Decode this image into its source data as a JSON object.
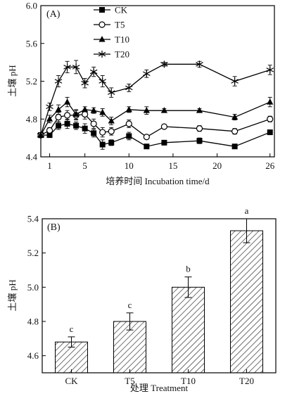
{
  "chart_data": [
    {
      "type": "line",
      "panel_label": "(A)",
      "xlabel": "培养时间 Incubation time/d",
      "ylabel": "土壤 pH",
      "xlim": [
        0,
        26.5
      ],
      "ylim": [
        4.4,
        6.0
      ],
      "xticks": [
        1,
        5,
        10,
        15,
        20,
        26
      ],
      "yticks": [
        4.4,
        4.8,
        5.2,
        5.6,
        6.0
      ],
      "ytick_labels": [
        "4.4",
        "4.8",
        "5.2",
        "5.6",
        "6.0"
      ],
      "grid": false,
      "legend_position": "top-left",
      "x": [
        0,
        1,
        2,
        3,
        4,
        5,
        6,
        7,
        8,
        10,
        12,
        14,
        18,
        22,
        26
      ],
      "series": [
        {
          "name": "CK",
          "marker": "filled-square",
          "values": [
            4.63,
            4.63,
            4.73,
            4.75,
            4.73,
            4.7,
            4.65,
            4.53,
            4.55,
            4.62,
            4.51,
            4.55,
            4.57,
            4.51,
            4.66
          ],
          "errors": [
            0.02,
            0.02,
            0.04,
            0.05,
            0.04,
            0.05,
            0.04,
            0.05,
            0.03,
            0.04,
            0.02,
            0.02,
            0.03,
            0.02,
            0.02
          ]
        },
        {
          "name": "T5",
          "marker": "open-circle",
          "values": [
            4.63,
            4.68,
            4.82,
            4.84,
            4.84,
            4.85,
            4.75,
            4.66,
            4.67,
            4.75,
            4.61,
            4.72,
            4.7,
            4.67,
            4.8
          ],
          "errors": [
            0.02,
            0.03,
            0.05,
            0.05,
            0.05,
            0.05,
            0.05,
            0.05,
            0.04,
            0.04,
            0.02,
            0.02,
            0.03,
            0.03,
            0.03
          ]
        },
        {
          "name": "T10",
          "marker": "filled-triangle",
          "values": [
            4.63,
            4.8,
            4.9,
            4.98,
            4.85,
            4.9,
            4.89,
            4.87,
            4.78,
            4.9,
            4.89,
            4.89,
            4.89,
            4.82,
            4.98
          ],
          "errors": [
            0.02,
            0.04,
            0.05,
            0.05,
            0.05,
            0.03,
            0.03,
            0.04,
            0.04,
            0.03,
            0.04,
            0.02,
            0.02,
            0.03,
            0.05
          ]
        },
        {
          "name": "T20",
          "marker": "asterisk",
          "values": [
            4.63,
            4.93,
            5.2,
            5.35,
            5.35,
            5.18,
            5.3,
            5.2,
            5.08,
            5.13,
            5.28,
            5.38,
            5.38,
            5.2,
            5.32
          ],
          "errors": [
            0.02,
            0.04,
            0.06,
            0.06,
            0.07,
            0.05,
            0.05,
            0.06,
            0.05,
            0.04,
            0.04,
            0.02,
            0.03,
            0.05,
            0.05
          ]
        }
      ]
    },
    {
      "type": "bar",
      "panel_label": "(B)",
      "xlabel": "处理 Treatment",
      "ylabel": "土壤 pH",
      "categories": [
        "CK",
        "T5",
        "T10",
        "T20"
      ],
      "values": [
        4.68,
        4.8,
        5.0,
        5.33
      ],
      "errors": [
        0.03,
        0.05,
        0.06,
        0.07
      ],
      "significance": [
        "c",
        "c",
        "b",
        "a"
      ],
      "ylim": [
        4.5,
        5.4
      ],
      "yticks": [
        4.6,
        4.8,
        5.0,
        5.2,
        5.4
      ],
      "grid": false,
      "fill": "diagonal-hatch"
    }
  ]
}
